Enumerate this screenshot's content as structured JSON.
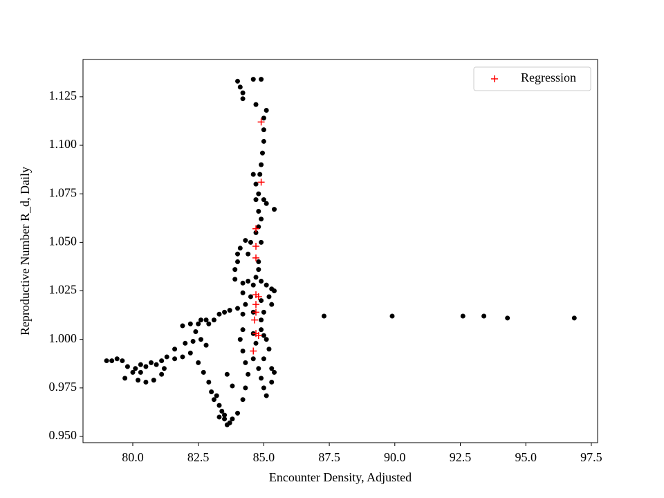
{
  "chart_data": {
    "type": "scatter",
    "xlabel": "Encounter Density, Adjusted",
    "ylabel": "Reproductive Number R_d, Daily",
    "xlim": [
      78.1,
      97.74
    ],
    "ylim": [
      0.9468,
      1.1442
    ],
    "xticks": [
      {
        "value": 80,
        "label": "80.0"
      },
      82.5,
      {
        "value": 85,
        "label": "85.0"
      },
      87.5,
      {
        "value": 90,
        "label": "90.0"
      },
      92.5,
      {
        "value": 95,
        "label": "95.0"
      },
      97.5
    ],
    "yticks": [
      {
        "value": 0.95,
        "label": "0.950"
      },
      0.975,
      {
        "value": 1.0,
        "label": "1.000"
      },
      1.025,
      {
        "value": 1.05,
        "label": "1.050"
      },
      1.075,
      {
        "value": 1.1,
        "label": "1.100"
      },
      1.125
    ],
    "legend": "upper right",
    "series": [
      {
        "color": "#000000",
        "marker": "dot",
        "x": [
          84.0,
          84.1,
          84.2,
          84.2,
          84.6,
          84.9,
          84.7,
          85.1,
          85.0,
          85.0,
          85.0,
          84.95,
          84.9,
          84.85,
          84.6,
          84.7,
          84.8,
          84.7,
          85.0,
          85.1,
          85.4,
          84.8,
          84.9,
          84.8,
          84.7,
          84.9,
          84.5,
          84.3,
          84.1,
          84.0,
          84.4,
          84.0,
          83.9,
          84.8,
          84.8,
          84.7,
          83.9,
          84.2,
          84.4,
          84.6,
          84.9,
          85.1,
          85.3,
          85.4,
          84.2,
          84.5,
          84.9,
          85.2,
          85.3,
          84.3,
          84.6,
          85.0,
          84.9,
          84.2,
          84.0,
          83.7,
          83.5,
          83.3,
          83.1,
          82.9,
          82.8,
          82.6,
          82.5,
          82.2,
          81.9,
          82.4,
          82.6,
          82.3,
          82.0,
          82.8,
          81.6,
          82.2,
          81.9,
          81.6,
          81.3,
          81.1,
          80.9,
          80.7,
          80.5,
          80.3,
          80.1,
          80.0,
          79.8,
          79.6,
          79.4,
          79.2,
          79.0,
          79.7,
          80.2,
          80.5,
          80.8,
          81.1,
          81.2,
          80.3,
          82.5,
          82.7,
          82.9,
          83.0,
          83.1,
          83.3,
          83.4,
          83.5,
          83.6,
          83.7,
          83.8,
          84.0,
          84.2,
          84.3,
          83.3,
          83.5,
          83.2,
          84.4,
          84.3,
          84.2,
          84.1,
          84.2,
          84.6,
          84.7,
          84.6,
          84.8,
          84.9,
          85.0,
          85.1,
          85.3,
          85.4,
          85.3,
          85.2,
          85.0,
          85.1,
          84.9,
          85.0,
          83.8,
          83.6,
          87.3,
          89.9,
          92.6,
          93.4,
          94.3,
          96.85
        ],
        "values": [
          1.133,
          1.13,
          1.127,
          1.124,
          1.134,
          1.134,
          1.121,
          1.118,
          1.114,
          1.108,
          1.102,
          1.096,
          1.09,
          1.085,
          1.085,
          1.08,
          1.075,
          1.072,
          1.072,
          1.07,
          1.067,
          1.066,
          1.062,
          1.058,
          1.055,
          1.05,
          1.05,
          1.051,
          1.047,
          1.044,
          1.044,
          1.04,
          1.036,
          1.036,
          1.04,
          1.032,
          1.031,
          1.029,
          1.03,
          1.028,
          1.03,
          1.028,
          1.026,
          1.025,
          1.024,
          1.022,
          1.02,
          1.022,
          1.018,
          1.018,
          1.014,
          1.014,
          1.01,
          1.013,
          1.016,
          1.015,
          1.014,
          1.013,
          1.01,
          1.008,
          1.01,
          1.01,
          1.008,
          1.008,
          1.007,
          1.004,
          1.0,
          0.999,
          0.998,
          0.997,
          0.995,
          0.993,
          0.991,
          0.99,
          0.991,
          0.989,
          0.987,
          0.988,
          0.986,
          0.987,
          0.985,
          0.983,
          0.986,
          0.989,
          0.99,
          0.989,
          0.989,
          0.98,
          0.979,
          0.978,
          0.979,
          0.982,
          0.985,
          0.983,
          0.988,
          0.983,
          0.978,
          0.973,
          0.969,
          0.966,
          0.963,
          0.959,
          0.956,
          0.957,
          0.959,
          0.962,
          0.969,
          0.975,
          0.96,
          0.961,
          0.971,
          0.982,
          0.988,
          0.994,
          1.0,
          1.005,
          1.003,
          0.998,
          0.99,
          0.985,
          0.98,
          0.975,
          0.971,
          0.978,
          0.983,
          0.985,
          0.995,
          1.002,
          1.0,
          1.005,
          0.99,
          0.976,
          0.982,
          1.012,
          1.012,
          1.012,
          1.012,
          1.011,
          1.011
        ]
      },
      {
        "name": "Regression",
        "color": "#ff0000",
        "marker": "plus",
        "x": [
          84.9,
          84.9,
          84.7,
          84.7,
          84.7,
          84.7,
          84.8,
          84.7,
          84.7,
          84.65,
          84.7,
          84.8,
          84.6
        ],
        "values": [
          1.112,
          1.081,
          1.057,
          1.048,
          1.042,
          1.023,
          1.022,
          1.018,
          1.014,
          1.01,
          1.003,
          1.002,
          0.994
        ]
      }
    ]
  }
}
